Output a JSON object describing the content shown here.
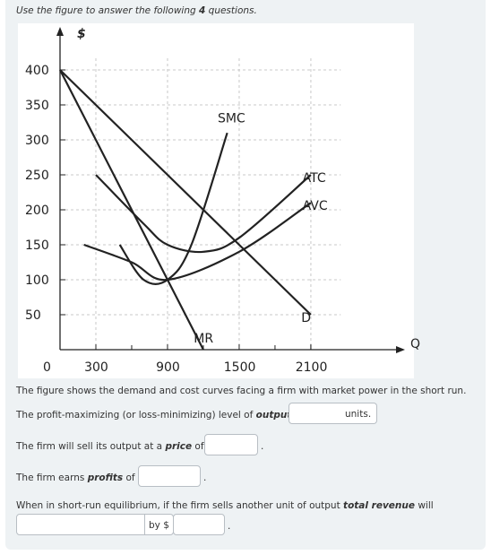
{
  "instruction": {
    "prefix": "Use the figure to answer the following",
    "count": "4",
    "suffix": "questions."
  },
  "chart_data": {
    "type": "line",
    "ylabel": "$",
    "xlabel": "Q",
    "x_ticks": [
      0,
      300,
      900,
      1500,
      2100
    ],
    "x_tick_labels": [
      "0",
      "300",
      "900",
      "1500",
      "2100"
    ],
    "y_ticks": [
      50,
      100,
      150,
      200,
      250,
      300,
      350,
      400
    ],
    "y_tick_labels": [
      "50",
      "100",
      "150",
      "200",
      "250",
      "300",
      "350",
      "400"
    ],
    "xlim": [
      0,
      2400
    ],
    "ylim": [
      0,
      420
    ],
    "grid": true,
    "series": [
      {
        "name": "D",
        "points": [
          [
            0,
            400
          ],
          [
            2100,
            50
          ]
        ]
      },
      {
        "name": "MR",
        "points": [
          [
            0,
            400
          ],
          [
            1200,
            0
          ]
        ]
      },
      {
        "name": "SMC",
        "points": [
          [
            500,
            150
          ],
          [
            700,
            100
          ],
          [
            900,
            100
          ],
          [
            1100,
            150
          ],
          [
            1400,
            310
          ]
        ]
      },
      {
        "name": "ATC",
        "points": [
          [
            300,
            250
          ],
          [
            700,
            180
          ],
          [
            900,
            150
          ],
          [
            1200,
            140
          ],
          [
            1500,
            160
          ],
          [
            2100,
            250
          ]
        ]
      },
      {
        "name": "AVC",
        "points": [
          [
            200,
            150
          ],
          [
            600,
            125
          ],
          [
            900,
            100
          ],
          [
            1500,
            140
          ],
          [
            2100,
            210
          ]
        ]
      }
    ]
  },
  "questions": {
    "intro": "The figure shows the demand and cost curves facing a firm with market power in the short run.",
    "q1_text": "The profit-maximizing (or loss-minimizing) level of",
    "q1_bold": "output",
    "q1_is": "is",
    "q1_units": "units.",
    "q2_text": "The firm will sell its output at a",
    "q2_bold": "price",
    "q2_of": "of $",
    "q2_end": ".",
    "q3_text": "The firm earns",
    "q3_bold": "profits",
    "q3_of": "of $",
    "q3_end": ".",
    "q4_text": "When in short-run equilibrium, if the firm sells another unit of output",
    "q4_bold": "total revenue",
    "q4_will": "will",
    "q4_by": "by $",
    "q4_end": "."
  }
}
